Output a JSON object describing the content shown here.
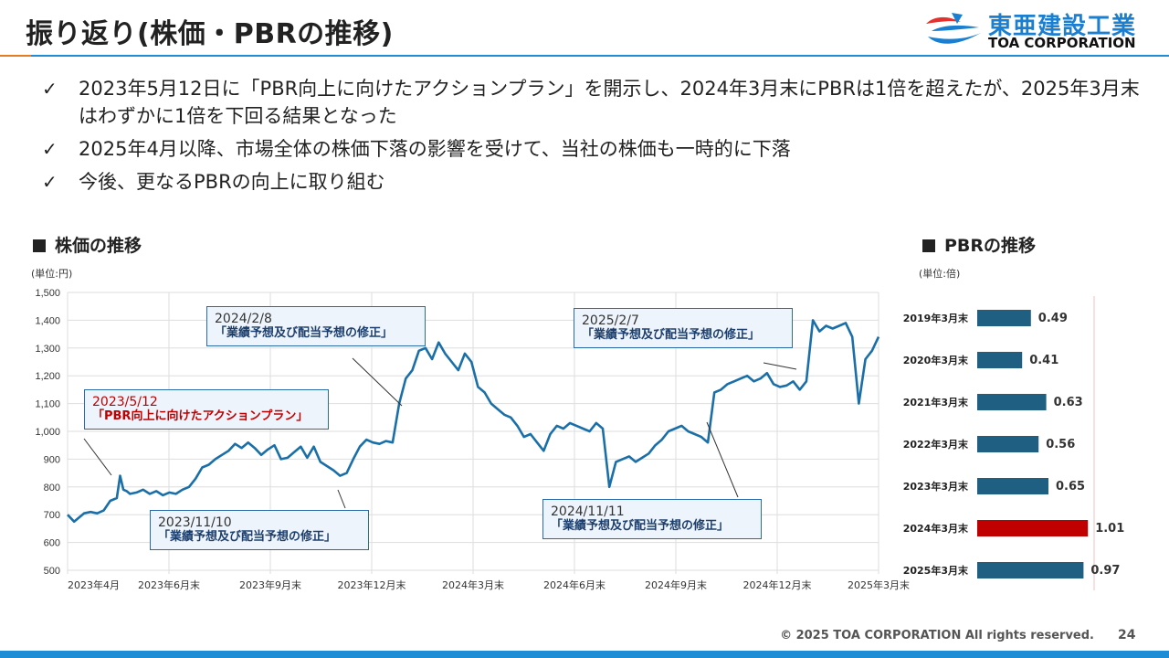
{
  "header": {
    "title": "振り返り(株価・PBRの推移)",
    "logo_jp": "東亜建設工業",
    "logo_en": "TOA CORPORATION"
  },
  "bullets": [
    "2023年5月12日に「PBR向上に向けたアクションプラン」を開示し、2024年3月末にPBRは1倍を超えたが、2025年3月末はわずかに1倍を下回る結果となった",
    "2025年4月以降、市場全体の株価下落の影響を受けて、当社の株価も一時的に下落",
    "今後、更なるPBRの向上に取り組む"
  ],
  "check_glyph": "✓",
  "price_section": {
    "title": "株価の推移",
    "unit": "(単位:円)"
  },
  "pbr_section": {
    "title": "PBRの推移",
    "unit": "(単位:倍)"
  },
  "callouts": [
    {
      "date": "2023/5/12",
      "text": "「PBR向上に向けたアクションプラン」",
      "color": "red"
    },
    {
      "date": "2023/11/10",
      "text": "「業績予想及び配当予想の修正」",
      "color": "navy"
    },
    {
      "date": "2024/2/8",
      "text": "「業績予想及び配当予想の修正」",
      "color": "navy"
    },
    {
      "date": "2024/11/11",
      "text": "「業績予想及び配当予想の修正」",
      "color": "navy"
    },
    {
      "date": "2025/2/7",
      "text": "「業績予想及び配当予想の修正」",
      "color": "navy"
    }
  ],
  "colors": {
    "line": "#1a6fa8",
    "bar": "#1f5f82",
    "bar_highlight": "#c00000",
    "accent_blue": "#1f8dd6",
    "accent_orange": "#e57c24"
  },
  "footer": {
    "copyright": "© 2025 TOA CORPORATION  All rights reserved.",
    "page": "24"
  },
  "chart_data": [
    {
      "type": "line",
      "title": "株価の推移",
      "ylabel": "(単位:円)",
      "ylim": [
        500,
        1500
      ],
      "yticks": [
        500,
        600,
        700,
        800,
        900,
        1000,
        1100,
        1200,
        1300,
        1400,
        1500
      ],
      "ytick_labels": [
        "500",
        "600",
        "700",
        "800",
        "900",
        "1,000",
        "1,100",
        "1,200",
        "1,300",
        "1,400",
        "1,500"
      ],
      "xticks": [
        "2023年4月",
        "2023年6月末",
        "2023年9月末",
        "2023年12月末",
        "2024年3月末",
        "2024年6月末",
        "2024年9月末",
        "2024年12月末",
        "2025年3月末"
      ],
      "grid": true,
      "series": [
        {
          "x": [
            0,
            0.2,
            0.35,
            0.5,
            0.7,
            0.9,
            1.1,
            1.3,
            1.4,
            1.5,
            1.6,
            1.7,
            1.8,
            1.9,
            2.1,
            2.3,
            2.5,
            2.7,
            2.9,
            3.1,
            3.3,
            3.5,
            3.7,
            3.9,
            4.1,
            4.3,
            4.5,
            4.7,
            4.9,
            5.1,
            5.3,
            5.5,
            5.7,
            5.9,
            6.1,
            6.3,
            6.5,
            6.7,
            6.9,
            7.1,
            7.3,
            7.5,
            7.7,
            7.9,
            8.1,
            8.3,
            8.5,
            8.7,
            8.9,
            9.1,
            9.3,
            9.5,
            9.7,
            9.9,
            10.1,
            10.3,
            10.5,
            10.7,
            10.9,
            11.1,
            11.3,
            11.5,
            11.7,
            11.9,
            12.1,
            12.3,
            12.5,
            12.7,
            12.9,
            13.1,
            13.3,
            13.5,
            13.7,
            13.9,
            14.1,
            14.3,
            14.5,
            14.7,
            14.9,
            15.1,
            15.3,
            15.5,
            15.7,
            15.9,
            16.1,
            16.3,
            16.5,
            16.7,
            16.9,
            17.1,
            17.3,
            17.5,
            17.7,
            17.9,
            18.1,
            18.3,
            18.5,
            18.7,
            18.9,
            19.1,
            19.3,
            19.5,
            19.7,
            19.9,
            20.1,
            20.3,
            20.5,
            20.7,
            20.9,
            21.1,
            21.3,
            21.5,
            21.7,
            21.9,
            22.1,
            22.3,
            22.5,
            22.7,
            22.9,
            23.1,
            23.3,
            23.5,
            23.7,
            23.9,
            24.1,
            24.3,
            24.5,
            24.7
          ],
          "values": [
            700,
            675,
            690,
            705,
            710,
            705,
            715,
            750,
            755,
            760,
            840,
            790,
            785,
            775,
            780,
            790,
            775,
            785,
            770,
            780,
            775,
            790,
            800,
            830,
            870,
            880,
            900,
            915,
            930,
            955,
            940,
            960,
            940,
            915,
            935,
            950,
            900,
            905,
            925,
            945,
            905,
            945,
            890,
            875,
            860,
            840,
            850,
            900,
            945,
            970,
            960,
            955,
            965,
            960,
            1100,
            1190,
            1220,
            1290,
            1300,
            1260,
            1320,
            1280,
            1250,
            1220,
            1280,
            1250,
            1160,
            1140,
            1100,
            1080,
            1060,
            1050,
            1020,
            980,
            990,
            960,
            930,
            990,
            1020,
            1010,
            1030,
            1020,
            1010,
            1000,
            1030,
            1010,
            800,
            890,
            900,
            910,
            890,
            905,
            920,
            950,
            970,
            1000,
            1010,
            1020,
            1000,
            990,
            980,
            960,
            1140,
            1150,
            1170,
            1180,
            1190,
            1200,
            1180,
            1190,
            1210,
            1170,
            1160,
            1165,
            1180,
            1150,
            1180,
            1400,
            1360,
            1380,
            1370,
            1380,
            1390,
            1340,
            1100,
            1260,
            1290,
            1340
          ]
        }
      ]
    },
    {
      "type": "bar",
      "orientation": "horizontal",
      "title": "PBRの推移",
      "ylabel": "(単位:倍)",
      "categories": [
        "2019年3月末",
        "2020年3月末",
        "2021年3月末",
        "2022年3月末",
        "2023年3月末",
        "2024年3月末",
        "2025年3月末"
      ],
      "values": [
        0.49,
        0.41,
        0.63,
        0.56,
        0.65,
        1.01,
        0.97
      ],
      "highlight_index": 5,
      "xlim": [
        0,
        1.05
      ]
    }
  ]
}
